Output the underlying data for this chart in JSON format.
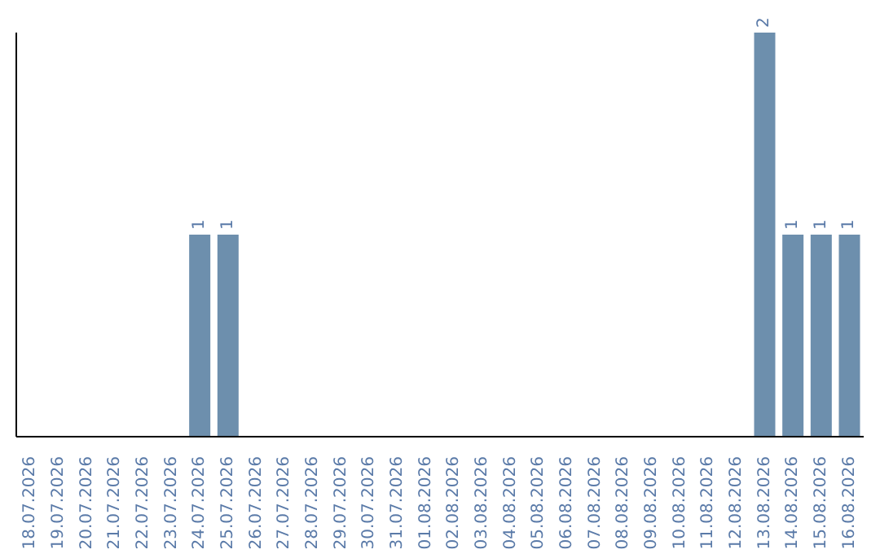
{
  "chart_data": {
    "type": "bar",
    "categories": [
      "18.07.2026",
      "19.07.2026",
      "20.07.2026",
      "21.07.2026",
      "22.07.2026",
      "23.07.2026",
      "24.07.2026",
      "25.07.2026",
      "26.07.2026",
      "27.07.2026",
      "28.07.2026",
      "29.07.2026",
      "30.07.2026",
      "31.07.2026",
      "01.08.2026",
      "02.08.2026",
      "03.08.2026",
      "04.08.2026",
      "05.08.2026",
      "06.08.2026",
      "07.08.2026",
      "08.08.2026",
      "09.08.2026",
      "10.08.2026",
      "11.08.2026",
      "12.08.2026",
      "13.08.2026",
      "14.08.2026",
      "15.08.2026",
      "16.08.2026"
    ],
    "series": [
      {
        "color": "#6d8fad",
        "values": [
          0,
          0,
          0,
          0,
          0,
          0,
          1,
          1,
          0,
          0,
          0,
          0,
          0,
          0,
          0,
          0,
          0,
          0,
          0,
          0,
          0,
          0,
          0,
          0,
          0,
          0,
          2,
          1,
          1,
          1
        ],
        "value_labels": [
          null,
          null,
          null,
          null,
          null,
          null,
          "1",
          "1",
          null,
          null,
          null,
          null,
          null,
          null,
          null,
          null,
          null,
          null,
          null,
          null,
          null,
          null,
          null,
          null,
          null,
          null,
          "2",
          "1",
          "1",
          "1"
        ]
      }
    ],
    "grid": false,
    "legend": false
  }
}
